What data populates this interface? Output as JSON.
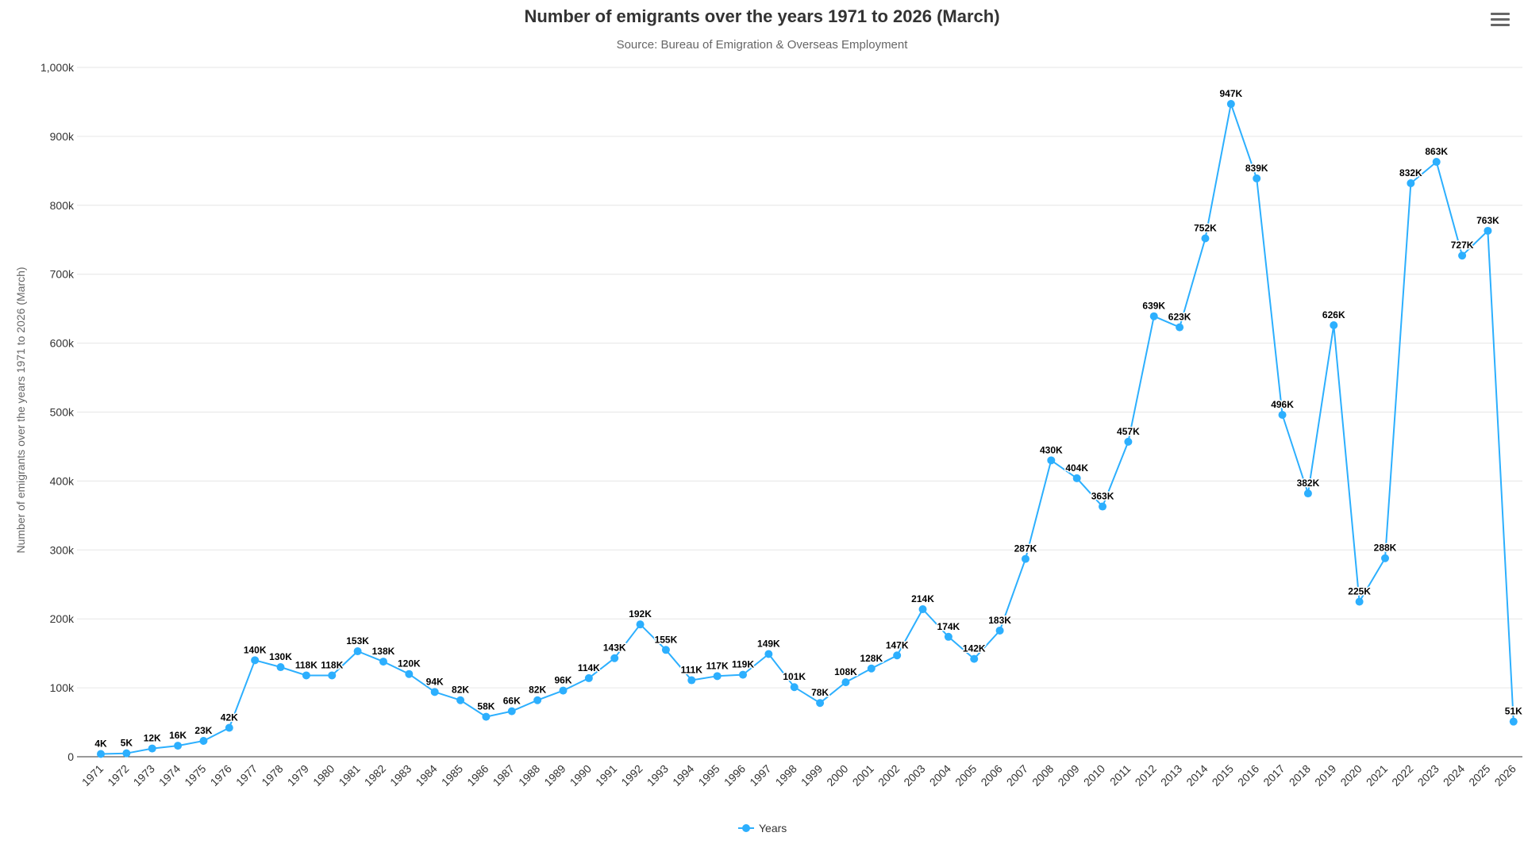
{
  "menu": {
    "icon": "hamburger-menu-icon"
  },
  "chart_data": {
    "type": "line",
    "title": "Number of emigrants over the years 1971 to 2026 (March)",
    "subtitle": "Source: Bureau of Emigration & Overseas Employment",
    "ylabel": "Number of emigrants over the years 1971 to 2026 (March)",
    "xlabel": "",
    "ylim": [
      0,
      1000000
    ],
    "yticks": [
      0,
      100000,
      200000,
      300000,
      400000,
      500000,
      600000,
      700000,
      800000,
      900000,
      1000000
    ],
    "ytick_labels": [
      "0",
      "100k",
      "200k",
      "300k",
      "400k",
      "500k",
      "600k",
      "700k",
      "800k",
      "900k",
      "1,000k"
    ],
    "grid": true,
    "legend_position": "bottom-center",
    "color": "#2caffe",
    "categories": [
      "1971",
      "1972",
      "1973",
      "1974",
      "1975",
      "1976",
      "1977",
      "1978",
      "1979",
      "1980",
      "1981",
      "1982",
      "1983",
      "1984",
      "1985",
      "1986",
      "1987",
      "1988",
      "1989",
      "1990",
      "1991",
      "1992",
      "1993",
      "1994",
      "1995",
      "1996",
      "1997",
      "1998",
      "1999",
      "2000",
      "2001",
      "2002",
      "2003",
      "2004",
      "2005",
      "2006",
      "2007",
      "2008",
      "2009",
      "2010",
      "2011",
      "2012",
      "2013",
      "2014",
      "2015",
      "2016",
      "2017",
      "2018",
      "2019",
      "2020",
      "2021",
      "2022",
      "2023",
      "2024",
      "2025",
      "2026"
    ],
    "series": [
      {
        "name": "Years",
        "values": [
          4000,
          5000,
          12000,
          16000,
          23000,
          42000,
          140000,
          130000,
          118000,
          118000,
          153000,
          138000,
          120000,
          94000,
          82000,
          58000,
          66000,
          82000,
          96000,
          114000,
          143000,
          192000,
          155000,
          111000,
          117000,
          119000,
          149000,
          101000,
          78000,
          108000,
          128000,
          147000,
          214000,
          174000,
          142000,
          183000,
          287000,
          430000,
          404000,
          363000,
          457000,
          639000,
          623000,
          752000,
          947000,
          839000,
          496000,
          382000,
          626000,
          225000,
          288000,
          832000,
          863000,
          727000,
          763000,
          51000
        ],
        "data_labels": [
          "4K",
          "5K",
          "12K",
          "16K",
          "23K",
          "42K",
          "140K",
          "130K",
          "118K",
          "118K",
          "153K",
          "138K",
          "120K",
          "94K",
          "82K",
          "58K",
          "66K",
          "82K",
          "96K",
          "114K",
          "143K",
          "192K",
          "155K",
          "111K",
          "117K",
          "119K",
          "149K",
          "101K",
          "78K",
          "108K",
          "128K",
          "147K",
          "214K",
          "174K",
          "142K",
          "183K",
          "287K",
          "430K",
          "404K",
          "363K",
          "457K",
          "639K",
          "623K",
          "752K",
          "947K",
          "839K",
          "496K",
          "382K",
          "626K",
          "225K",
          "288K",
          "832K",
          "863K",
          "727K",
          "763K",
          "51K"
        ]
      }
    ]
  }
}
